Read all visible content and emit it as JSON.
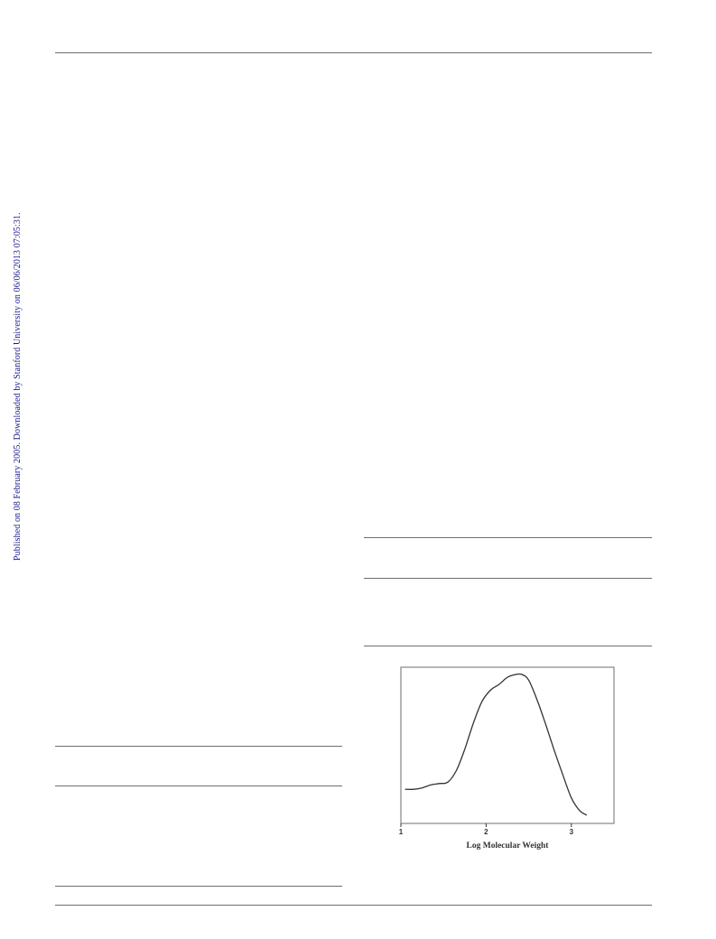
{
  "watermark": {
    "text": "Published on 08 February 2005. Downloaded by Stanford University on 06/06/2013 07:05:31.",
    "color": "#1b1b8c"
  },
  "chart_data": {
    "type": "line",
    "xlabel": "Log Molecular Weight",
    "ylabel": "",
    "xlim": [
      1,
      3.5
    ],
    "ylim": [
      0,
      1
    ],
    "xticks": [
      "1",
      "2",
      "3"
    ],
    "grid": false,
    "series": [
      {
        "x": [
          1.05,
          1.15,
          1.25,
          1.35,
          1.45,
          1.55,
          1.65,
          1.75,
          1.85,
          1.95,
          2.05,
          2.15,
          2.25,
          2.35,
          2.42,
          2.5,
          2.6,
          2.7,
          2.8,
          2.9,
          3.0,
          3.1,
          3.18
        ],
        "values": [
          0.2,
          0.2,
          0.21,
          0.23,
          0.24,
          0.25,
          0.33,
          0.48,
          0.66,
          0.81,
          0.89,
          0.93,
          0.98,
          1.0,
          1.0,
          0.96,
          0.82,
          0.65,
          0.47,
          0.3,
          0.14,
          0.05,
          0.02
        ]
      }
    ]
  }
}
